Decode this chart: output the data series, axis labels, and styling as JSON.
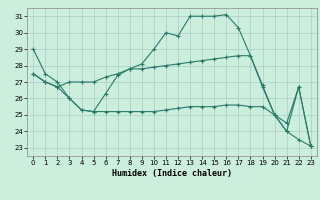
{
  "xlabel": "Humidex (Indice chaleur)",
  "bg_color": "#cceedd",
  "line_color": "#2a7a6a",
  "grid_color": "#aacccc",
  "xlim": [
    -0.5,
    23.5
  ],
  "ylim": [
    22.5,
    31.5
  ],
  "yticks": [
    23,
    24,
    25,
    26,
    27,
    28,
    29,
    30,
    31
  ],
  "xticks": [
    0,
    1,
    2,
    3,
    4,
    5,
    6,
    7,
    8,
    9,
    10,
    11,
    12,
    13,
    14,
    15,
    16,
    17,
    18,
    19,
    20,
    21,
    22,
    23
  ],
  "line1_x": [
    0,
    1,
    2,
    3,
    4,
    5,
    6,
    7,
    8,
    9,
    10,
    11,
    12,
    13,
    14,
    15,
    16,
    17,
    18,
    19,
    20,
    21,
    22,
    23
  ],
  "line1_y": [
    29.0,
    27.5,
    27.0,
    26.0,
    25.3,
    25.2,
    26.3,
    27.4,
    27.8,
    28.1,
    29.0,
    30.0,
    29.8,
    31.0,
    31.0,
    31.0,
    31.1,
    30.3,
    28.6,
    26.7,
    25.0,
    24.0,
    26.7,
    23.1
  ],
  "line2_x": [
    0,
    1,
    2,
    3,
    4,
    5,
    6,
    7,
    8,
    9,
    10,
    11,
    12,
    13,
    14,
    15,
    16,
    17,
    18,
    19,
    20,
    21,
    22,
    23
  ],
  "line2_y": [
    27.5,
    27.0,
    26.7,
    27.0,
    27.0,
    27.0,
    27.3,
    27.5,
    27.8,
    27.8,
    27.9,
    28.0,
    28.1,
    28.2,
    28.3,
    28.4,
    28.5,
    28.6,
    28.6,
    26.8,
    25.0,
    24.5,
    26.7,
    23.1
  ],
  "line3_x": [
    0,
    1,
    2,
    3,
    4,
    5,
    6,
    7,
    8,
    9,
    10,
    11,
    12,
    13,
    14,
    15,
    16,
    17,
    18,
    19,
    20,
    21,
    22,
    23
  ],
  "line3_y": [
    27.5,
    27.0,
    26.7,
    26.0,
    25.3,
    25.2,
    25.2,
    25.2,
    25.2,
    25.2,
    25.2,
    25.3,
    25.4,
    25.5,
    25.5,
    25.5,
    25.6,
    25.6,
    25.5,
    25.5,
    25.0,
    24.0,
    23.5,
    23.1
  ],
  "figwidth": 3.2,
  "figheight": 2.0,
  "dpi": 100
}
